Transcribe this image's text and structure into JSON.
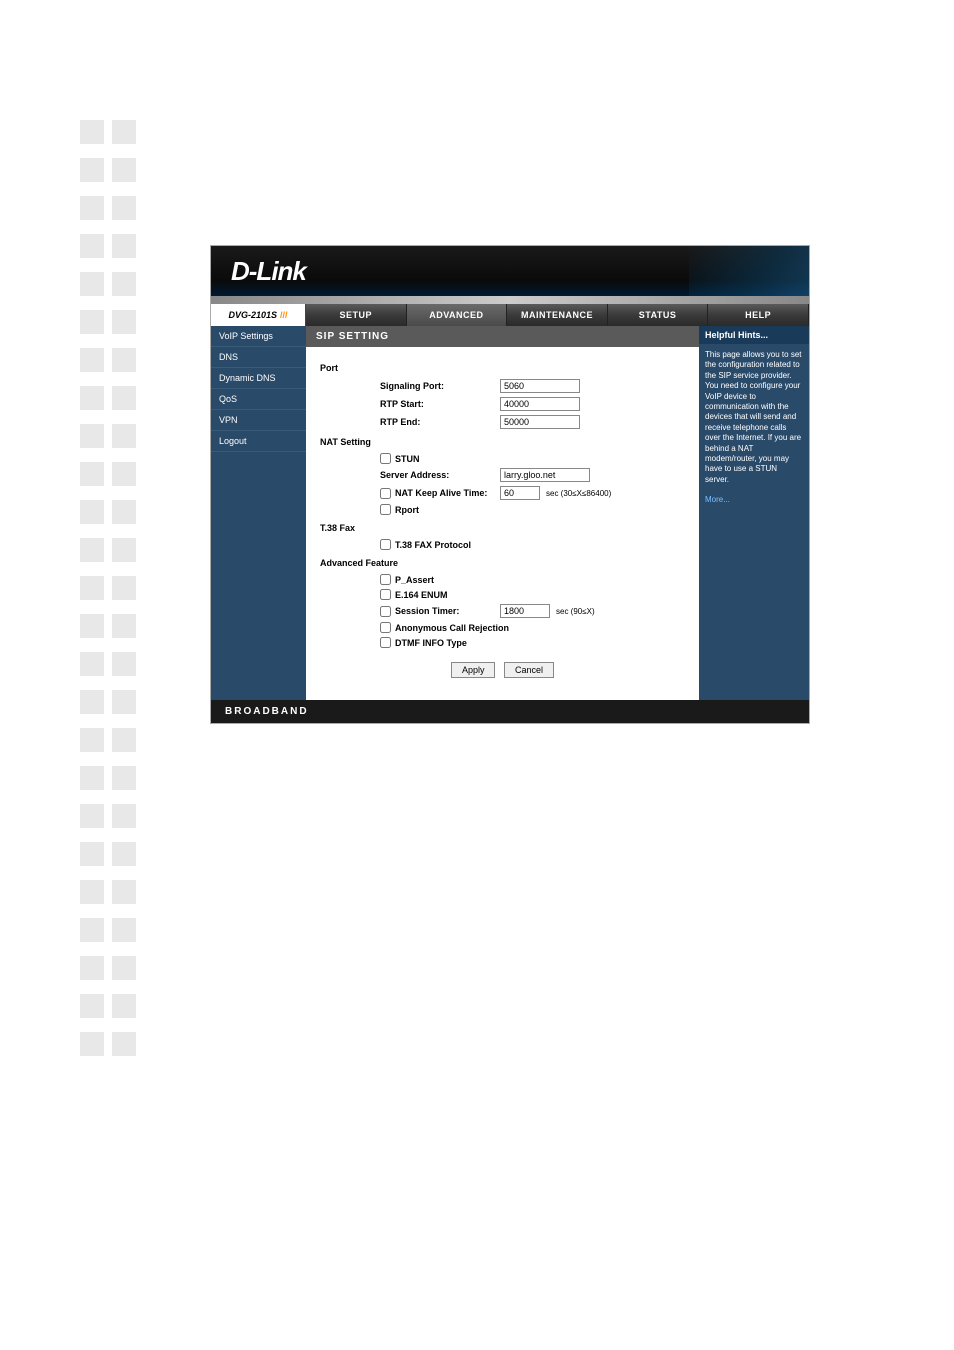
{
  "decor": {
    "square_rows": 25,
    "square_color": "#e8e8e8"
  },
  "header": {
    "brand": "D-Link",
    "model": "DVG-2101S"
  },
  "nav": {
    "tabs": [
      "SETUP",
      "ADVANCED",
      "MAINTENANCE",
      "STATUS",
      "HELP"
    ],
    "active_index": 1
  },
  "sidebar": {
    "items": [
      "VoIP Settings",
      "DNS",
      "Dynamic DNS",
      "QoS",
      "VPN",
      "Logout"
    ]
  },
  "section": {
    "title": "SIP SETTING"
  },
  "form": {
    "groups": {
      "port": {
        "label": "Port",
        "signaling_port_label": "Signaling Port:",
        "signaling_port_value": "5060",
        "rtp_start_label": "RTP Start:",
        "rtp_start_value": "40000",
        "rtp_end_label": "RTP End:",
        "rtp_end_value": "50000"
      },
      "nat": {
        "label": "NAT Setting",
        "stun_label": "STUN",
        "server_address_label": "Server Address:",
        "server_address_value": "larry.gloo.net",
        "keep_alive_label": "NAT Keep Alive Time:",
        "keep_alive_value": "60",
        "keep_alive_hint": "sec  (30≤X≤86400)",
        "rport_label": "Rport"
      },
      "fax": {
        "label": "T.38 Fax",
        "protocol_label": "T.38 FAX Protocol"
      },
      "advanced": {
        "label": "Advanced Feature",
        "passert_label": "P_Assert",
        "e164_label": "E.164 ENUM",
        "session_timer_label": "Session Timer:",
        "session_timer_value": "1800",
        "session_timer_hint": "sec  (90≤X)",
        "anon_reject_label": "Anonymous Call Rejection",
        "dtmf_label": "DTMF INFO Type"
      }
    },
    "buttons": {
      "apply": "Apply",
      "cancel": "Cancel"
    }
  },
  "help": {
    "title": "Helpful Hints...",
    "body": "This page allows you to set the configuration related to the SIP service provider. You need to configure your VoIP device to communication with the devices that will send and receive telephone calls over the Internet. If you are behind a NAT modem/router, you may have to use a STUN server.",
    "more": "More..."
  },
  "footer": {
    "text": "BROADBAND"
  }
}
